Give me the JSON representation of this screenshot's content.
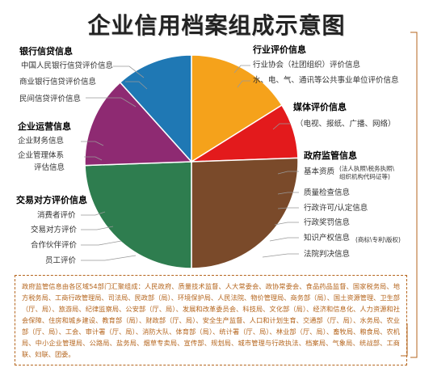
{
  "title": "企业信用档案组成示意图",
  "colors": {
    "bank": "#1f78b4",
    "industry": "#f5a21b",
    "media": "#e31a1c",
    "gov": "#7a4a2a",
    "operation": "#8e2a72",
    "trade": "#2e7d4f"
  },
  "categories": {
    "bank": {
      "title": "银行信贷信息",
      "items": [
        "中国人民银行信贷评价信息",
        "商业银行信贷评价信息",
        "民间信贷评价信息"
      ]
    },
    "industry": {
      "title": "行业评价信息",
      "items": [
        "行业协会（社团组织）评价信息",
        "水、电、气、通讯等公共事业单位评价信息"
      ]
    },
    "media": {
      "title": "媒体评价信息",
      "items": [
        "（电视、报纸、广播、网络）"
      ]
    },
    "gov": {
      "title": "政府监管信息",
      "basic_label": "基本资质",
      "basic_note_1": "(法人执照\\税务执照\\",
      "basic_note_2": "组织机构代码证等)",
      "items": [
        "质量检查信息",
        "行政许可/认定信息",
        "行政奖罚信息"
      ],
      "ip_label": "知识产权信息",
      "ip_note": "(商标\\专利\\版权)",
      "court": "法院判决信息"
    },
    "operation": {
      "title": "企业运营信息",
      "item1": "企业财务信息",
      "item2_line1": "企业管理体系",
      "item2_line2": "评估信息"
    },
    "trade": {
      "title": "交易对方评价信息",
      "items": [
        "消费者评价",
        "交易对方评价",
        "合作伙伴评价",
        "员工评价"
      ]
    }
  },
  "footnote": "政府监管信息由各区域54部门汇聚组成：人民政府、质量技术监督、人大常委会、政协常委会、食品药品监督、国家税务局、地方税务局、工商行政管理局、司法局、民政部（局）、环境保护局、人民法院、物价管理局、商务部（局）、国土资源管理、卫生部（厅、局）、旅游局、纪律监察局、公安部（厅、局）、发展和改革委员会、科技局、文化部（局）、经济和信息化、人力资源和社会保障、住房和城乡建设、教育部（局）、财政部（厅、局）、安全生产监督、人口和计划生育、交通部（厅、局）、水务局、农业部（厅、局）、工会、审计署（厅、局）、消防大队、体育部（局）、统计署（厅、局）、林业部（厅、局）、畜牧局、粮食局、农机局、中小企业管理局、公路局、盐务局、烟草专卖局、宣传部、规划局、城市管理与行政执法、档案局、气象局、统战部、工商联、妇联、团委。"
}
